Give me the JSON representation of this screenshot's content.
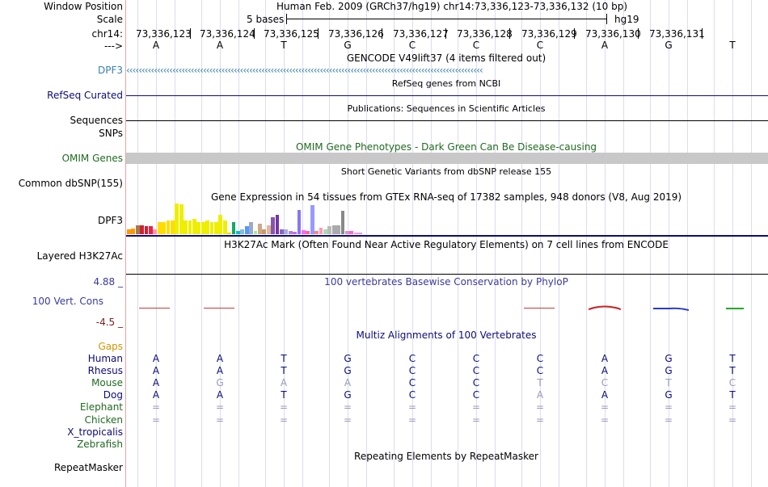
{
  "header": {
    "window_position_label": "Window Position",
    "window_position_text": "Human Feb. 2009 (GRCh37/hg19)   chr14:73,336,123-73,336,132 (10 bp)",
    "scale_label": "Scale",
    "scale_text": "5 bases",
    "scale_assembly": "hg19",
    "chrom_label": "chr14:",
    "strand_label": "--->",
    "coordinates": [
      "73,336,123",
      "73,336,124",
      "73,336,125",
      "73,336,126",
      "73,336,127",
      "73,336,128",
      "73,336,129",
      "73,336,130",
      "73,336,131"
    ],
    "bases": [
      "A",
      "A",
      "T",
      "G",
      "C",
      "C",
      "C",
      "A",
      "G",
      "T"
    ]
  },
  "tracks": {
    "gencode": {
      "title": "GENCODE V49lift37 (4 items filtered out)",
      "label": "DPF3",
      "color": "#3a7fb0",
      "arrows": "‹‹‹‹‹‹‹‹‹‹‹‹‹‹‹‹‹‹‹‹‹‹‹‹‹‹‹‹‹‹‹‹‹‹‹‹‹‹‹‹‹‹‹‹‹‹‹‹‹‹‹‹‹‹‹‹‹‹‹‹‹‹‹‹‹‹‹‹‹‹‹‹‹‹‹‹‹‹‹‹‹‹‹‹‹‹‹‹‹‹‹‹‹‹‹‹‹‹‹‹‹‹‹‹‹‹‹‹‹‹‹‹‹‹‹‹"
    },
    "refseq": {
      "title": "RefSeq genes from NCBI",
      "label": "RefSeq Curated",
      "color": "#0c0c78"
    },
    "publications": {
      "title": "Publications: Sequences in Scientific Articles",
      "label": "Sequences"
    },
    "snps": {
      "label": "SNPs"
    },
    "omim": {
      "title": "OMIM Gene Phenotypes - Dark Green Can Be Disease-causing",
      "label": "OMIM Genes",
      "color": "#1f6a1f"
    },
    "dbsnp": {
      "title": "Short Genetic Variants from dbSNP release 155",
      "label": "Common dbSNP(155)"
    },
    "gtex": {
      "title": "Gene Expression in 54 tissues from GTEx RNA-seq of 17382 samples, 948 donors (V8, Aug 2019)",
      "label": "DPF3",
      "values": [
        0.15,
        0.18,
        0.3,
        0.3,
        0.25,
        0.25,
        0.15,
        0.4,
        0.4,
        0.45,
        0.45,
        1.0,
        0.98,
        0.45,
        0.45,
        0.5,
        0.4,
        0.4,
        0.45,
        0.4,
        0.4,
        0.62,
        0.45,
        0.05,
        0.4,
        0.1,
        0.15,
        0.25,
        0.4,
        0.1,
        0.35,
        0.15,
        0.3,
        0.55,
        0.62,
        0.15,
        0.15,
        0.1,
        0.08,
        0.78,
        0.12,
        0.1,
        0.95,
        0.1,
        0.2,
        0.15,
        0.25,
        0.3,
        0.3,
        0.75,
        0.1,
        0.1,
        0.05,
        0.05
      ],
      "colors": [
        "#ff9900",
        "#ff9900",
        "#a47c4c",
        "#cc2233",
        "#cc2233",
        "#ee2244",
        "#ff99aa",
        "#ffdd00",
        "#ffdd00",
        "#ffdd00",
        "#ffdd00",
        "#eeee00",
        "#eeee00",
        "#eeee00",
        "#eeee00",
        "#eeee00",
        "#eeee00",
        "#eeee00",
        "#eeee00",
        "#eeee00",
        "#eeee00",
        "#eeee00",
        "#eeee00",
        "#dddd00",
        "#11aa66",
        "#11bbcc",
        "#88bbdd",
        "#5599ff",
        "#99aacc",
        "#aaee77",
        "#ccaa88",
        "#cc9966",
        "#ddbb99",
        "#8855aa",
        "#7733aa",
        "#8866bb",
        "#aaaadd",
        "#aa88cc",
        "#cc66ee",
        "#8877ee",
        "#ff66ff",
        "#ff6699",
        "#9999ff",
        "#ff8877",
        "#ff99bb",
        "#aaddaa",
        "#bbbbbb",
        "#aaaaaa",
        "#aaaaaa",
        "#888888",
        "#cc99cc",
        "#ff66cc",
        "#ff99cc",
        "#dd99ee"
      ]
    },
    "h3k27ac": {
      "title": "H3K27Ac Mark (Often Found Near Active Regulatory Elements) on 7 cell lines from ENCODE",
      "label": "Layered H3K27Ac"
    },
    "phylop": {
      "title": "100 vertebrates Basewise Conservation by PhyloP",
      "label": "100 Vert. Cons",
      "max_label": "4.88 _",
      "min_label": "-4.5 _",
      "color": "#3a3a9a"
    },
    "multiz": {
      "title": "Multiz Alignments of 100 Vertebrates",
      "gaps_label": "Gaps",
      "species": [
        {
          "name": "Human",
          "color": "#0c0c78",
          "seq": [
            "A",
            "A",
            "T",
            "G",
            "C",
            "C",
            "C",
            "A",
            "G",
            "T"
          ],
          "dim": [
            0,
            0,
            0,
            0,
            0,
            0,
            0,
            0,
            0,
            0
          ]
        },
        {
          "name": "Rhesus",
          "color": "#0c0c78",
          "seq": [
            "A",
            "A",
            "T",
            "G",
            "C",
            "C",
            "C",
            "A",
            "G",
            "T"
          ],
          "dim": [
            0,
            0,
            0,
            0,
            0,
            0,
            0,
            0,
            0,
            0
          ]
        },
        {
          "name": "Mouse",
          "color": "#1f6a1f",
          "seq": [
            "A",
            "G",
            "A",
            "A",
            "C",
            "C",
            "T",
            "C",
            "T",
            "C"
          ],
          "dim": [
            0,
            1,
            1,
            1,
            0,
            0,
            1,
            1,
            1,
            1
          ]
        },
        {
          "name": "Dog",
          "color": "#0c0c78",
          "seq": [
            "A",
            "A",
            "T",
            "G",
            "C",
            "C",
            "A",
            "A",
            "G",
            "T"
          ],
          "dim": [
            0,
            0,
            0,
            0,
            0,
            0,
            1,
            0,
            0,
            0
          ]
        },
        {
          "name": "Elephant",
          "color": "#1f6a1f",
          "seq": [
            "=",
            "=",
            "=",
            "=",
            "=",
            "=",
            "=",
            "=",
            "=",
            "="
          ],
          "dim": [
            1,
            1,
            1,
            1,
            1,
            1,
            1,
            1,
            1,
            1
          ]
        },
        {
          "name": "Chicken",
          "color": "#1f6a1f",
          "seq": [
            "=",
            "=",
            "=",
            "=",
            "=",
            "=",
            "=",
            "=",
            "=",
            "="
          ],
          "dim": [
            1,
            1,
            1,
            1,
            1,
            1,
            1,
            1,
            1,
            1
          ]
        },
        {
          "name": "X_tropicalis",
          "color": "#0c0c78",
          "seq": [],
          "dim": []
        },
        {
          "name": "Zebrafish",
          "color": "#1f6a1f",
          "seq": [],
          "dim": []
        }
      ]
    },
    "repeatmasker": {
      "title": "Repeating Elements by RepeatMasker",
      "label": "RepeatMasker"
    }
  },
  "colors": {
    "gaps": "#d49400",
    "omim_bar": "#c8c8c8"
  }
}
